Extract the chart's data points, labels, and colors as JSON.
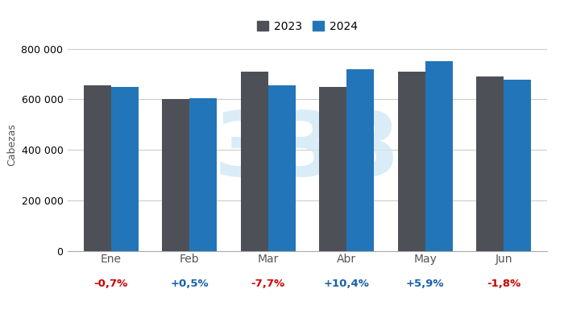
{
  "categories": [
    "Ene",
    "Feb",
    "Mar",
    "Abr",
    "May",
    "Jun"
  ],
  "values_2023": [
    655000,
    600000,
    710000,
    650000,
    710000,
    690000
  ],
  "values_2024": [
    650400,
    603000,
    655400,
    717600,
    751900,
    677600
  ],
  "pct_labels": [
    "-0,7%",
    "+0,5%",
    "-7,7%",
    "+10,4%",
    "+5,9%",
    "-1,8%"
  ],
  "pct_colors": [
    "#cc0000",
    "#1761a8",
    "#cc0000",
    "#1761a8",
    "#1761a8",
    "#cc0000"
  ],
  "color_2023": "#4d5157",
  "color_2024": "#2275b8",
  "ylabel": "Cabezas",
  "ylim": [
    0,
    840000
  ],
  "yticks": [
    0,
    200000,
    400000,
    600000,
    800000
  ],
  "legend_labels": [
    "2023",
    "2024"
  ],
  "background_color": "#ffffff",
  "grid_color": "#cccccc",
  "bar_width": 0.35
}
